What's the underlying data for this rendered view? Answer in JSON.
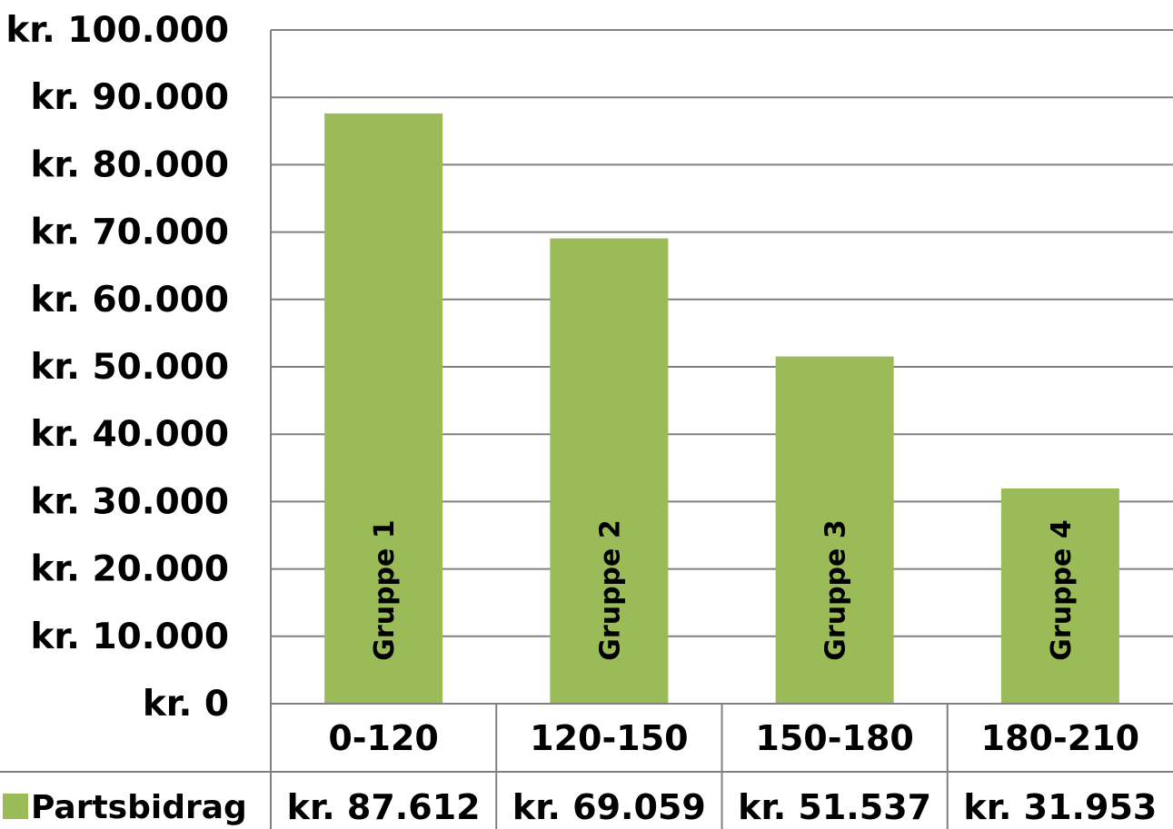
{
  "chart_data": {
    "type": "bar",
    "title": "",
    "xlabel": "",
    "ylabel": "",
    "ylim": [
      0,
      100000
    ],
    "y_ticks": [
      "kr. 0",
      "kr. 10.000",
      "kr. 20.000",
      "kr. 30.000",
      "kr. 40.000",
      "kr. 50.000",
      "kr. 60.000",
      "kr. 70.000",
      "kr. 80.000",
      "kr. 90.000",
      "kr. 100.000"
    ],
    "categories": [
      "0-120",
      "120-150",
      "150-180",
      "180-210"
    ],
    "series": [
      {
        "name": "Partsbidrag",
        "values": [
          87612,
          69059,
          51537,
          31953
        ],
        "value_labels": [
          "kr. 87.612",
          "kr. 69.059",
          "kr. 51.537",
          "kr. 31.953"
        ],
        "bar_labels": [
          "Gruppe 1",
          "Gruppe 2",
          "Gruppe 3",
          "Gruppe 4"
        ],
        "color": "#9bbb59"
      }
    ],
    "grid": true,
    "data_table": true,
    "legend": "data-table-left"
  }
}
